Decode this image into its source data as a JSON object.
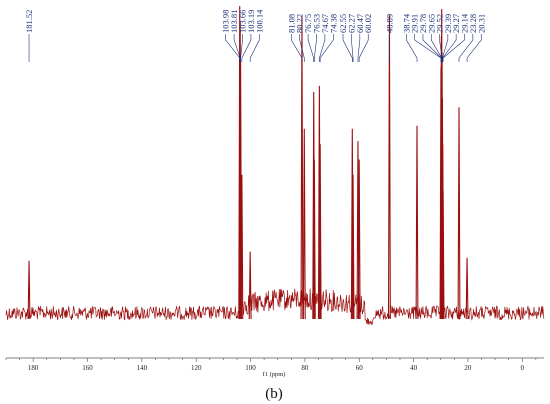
{
  "chart_data": {
    "type": "line",
    "caption": "(b)",
    "xlabel": "f1 (ppm)",
    "x_axis_reversed": true,
    "xlim": [
      190,
      -8
    ],
    "x_ticks": [
      180,
      160,
      140,
      120,
      100,
      80,
      60,
      40,
      20,
      0
    ],
    "line_color": "#9b0f0f",
    "label_color": "#1c2f7a",
    "peak_labels": [
      "181.52",
      "103.98",
      "103.81",
      "103.66",
      "103.19",
      "100.14",
      "81.08",
      "80.22",
      "76.75",
      "76.53",
      "74.67",
      "74.38",
      "62.55",
      "62.27",
      "60.47",
      "60.02",
      "48.89",
      "38.74",
      "29.91",
      "29.78",
      "29.65",
      "29.52",
      "29.39",
      "29.27",
      "29.14",
      "23.28",
      "20.31"
    ],
    "series": [
      {
        "peaks": [
          {
            "ppm": 181.52,
            "rel_height": 0.17
          },
          {
            "ppm": 103.98,
            "rel_height": 1.0
          },
          {
            "ppm": 103.81,
            "rel_height": 0.95
          },
          {
            "ppm": 103.66,
            "rel_height": 0.82
          },
          {
            "ppm": 103.19,
            "rel_height": 0.45
          },
          {
            "ppm": 100.14,
            "rel_height": 0.2
          },
          {
            "ppm": 81.08,
            "rel_height": 0.97
          },
          {
            "ppm": 80.22,
            "rel_height": 0.6
          },
          {
            "ppm": 76.75,
            "rel_height": 0.72
          },
          {
            "ppm": 76.53,
            "rel_height": 0.5
          },
          {
            "ppm": 74.67,
            "rel_height": 0.74
          },
          {
            "ppm": 74.38,
            "rel_height": 0.55
          },
          {
            "ppm": 62.55,
            "rel_height": 0.6
          },
          {
            "ppm": 62.27,
            "rel_height": 0.45
          },
          {
            "ppm": 60.47,
            "rel_height": 0.56
          },
          {
            "ppm": 60.02,
            "rel_height": 0.5
          },
          {
            "ppm": 48.89,
            "rel_height": 0.97
          },
          {
            "ppm": 38.74,
            "rel_height": 0.61
          },
          {
            "ppm": 29.91,
            "rel_height": 0.8
          },
          {
            "ppm": 29.78,
            "rel_height": 0.9
          },
          {
            "ppm": 29.65,
            "rel_height": 0.99
          },
          {
            "ppm": 29.52,
            "rel_height": 0.85
          },
          {
            "ppm": 29.39,
            "rel_height": 0.7
          },
          {
            "ppm": 29.27,
            "rel_height": 0.55
          },
          {
            "ppm": 29.14,
            "rel_height": 0.4
          },
          {
            "ppm": 23.28,
            "rel_height": 0.67
          },
          {
            "ppm": 20.31,
            "rel_height": 0.18
          }
        ]
      }
    ]
  }
}
